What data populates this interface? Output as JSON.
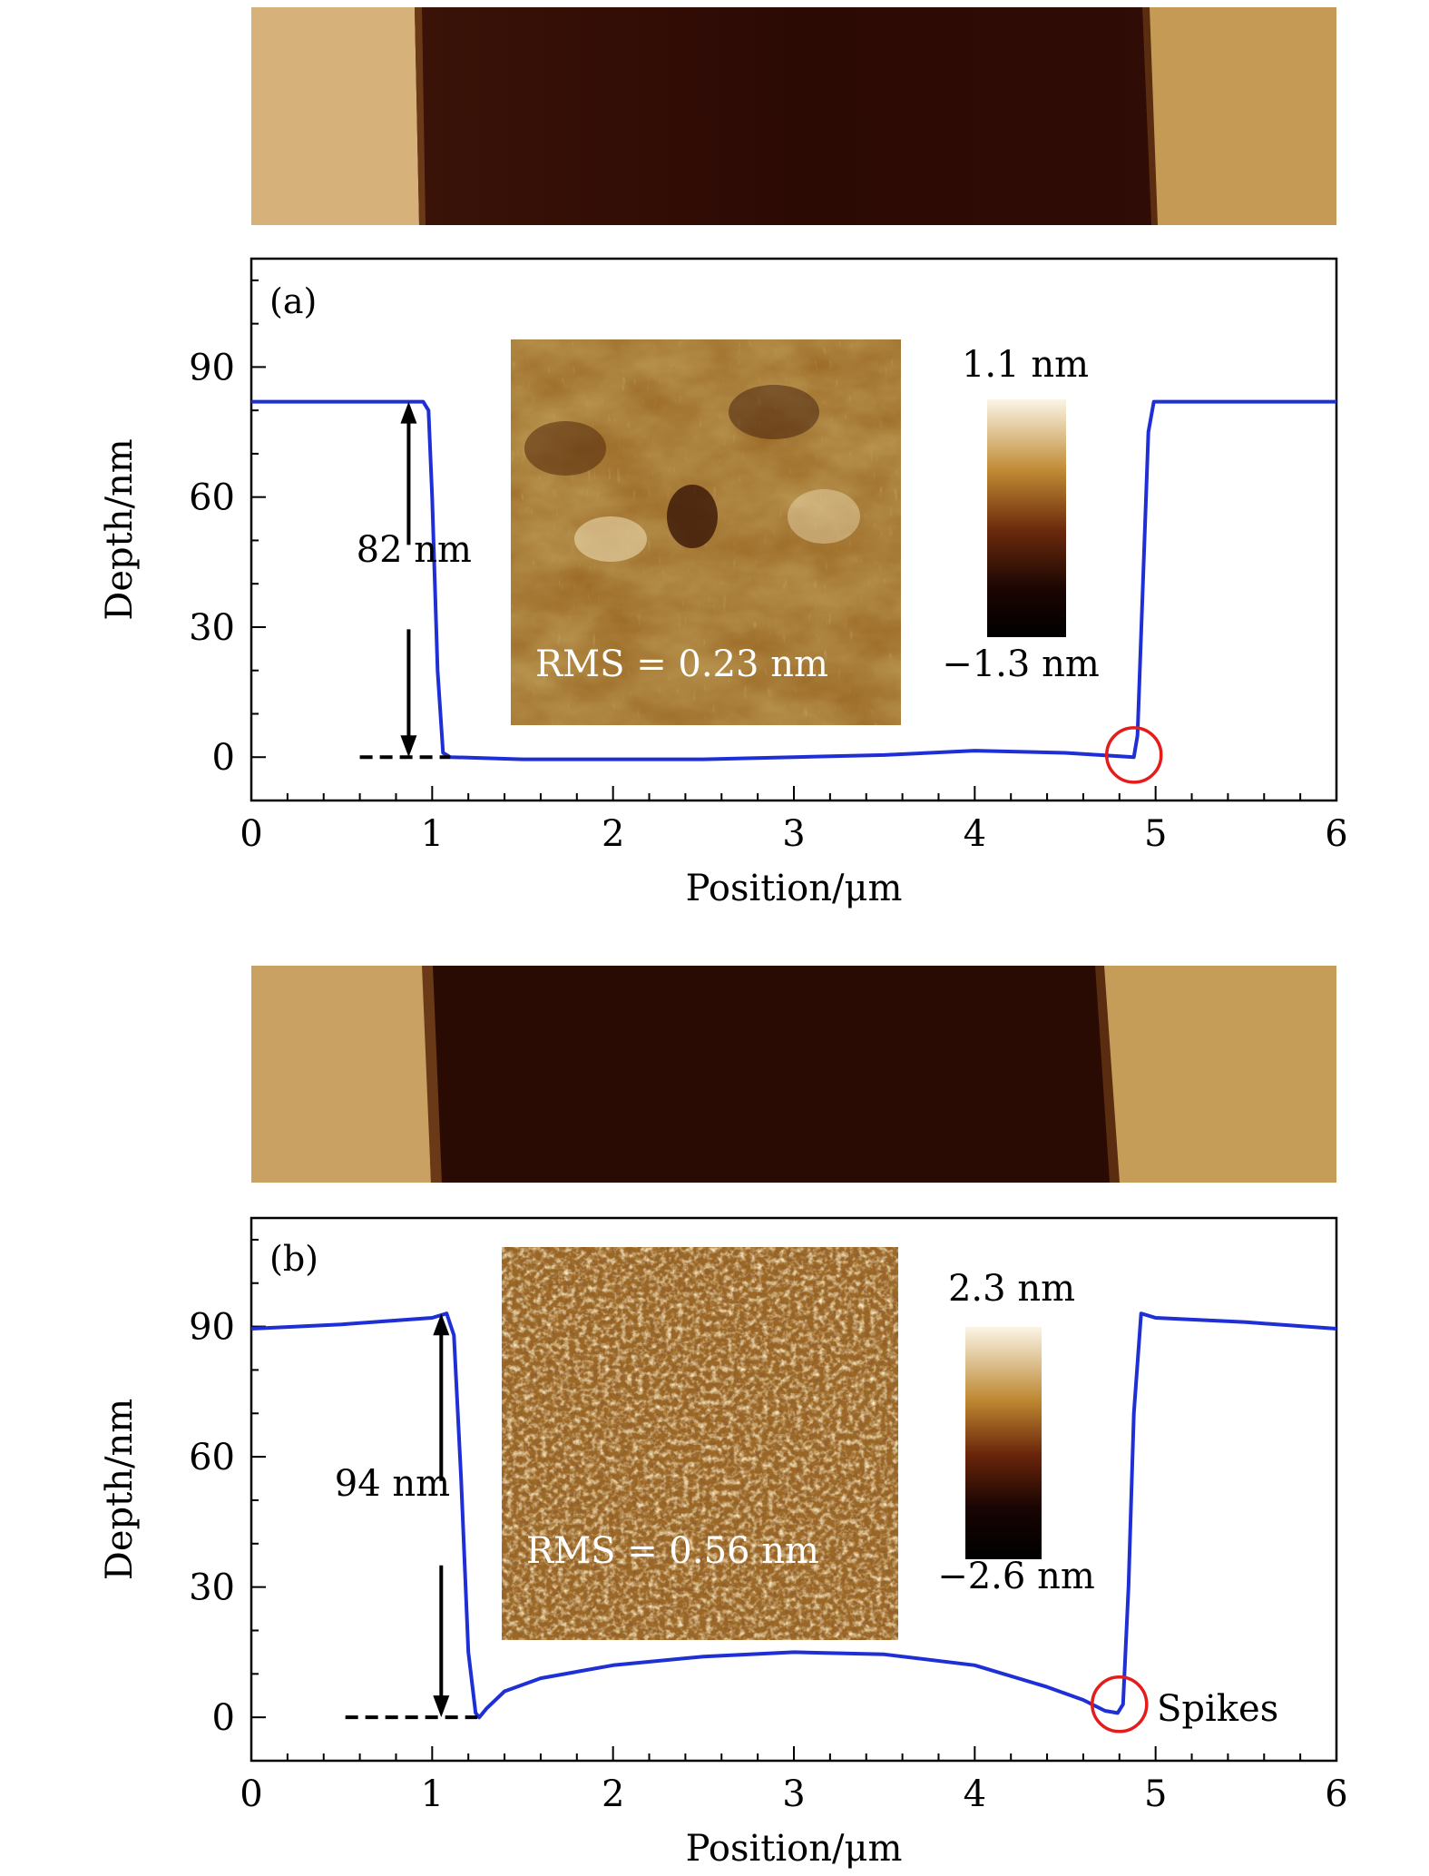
{
  "colors": {
    "curve": "#1f2fd6",
    "circle": "#e51c1c",
    "axis": "#000000",
    "afm_bright": "#f5ead2",
    "afm_mid": "#b8862f",
    "afm_dark": "#2a0a04"
  },
  "chart_data": [
    {
      "type": "line",
      "panel_label": "(a)",
      "xlabel": "Position/μm",
      "ylabel": "Depth/nm",
      "xlim": [
        0,
        6
      ],
      "ylim": [
        -10,
        115
      ],
      "xticks": [
        "0",
        "1",
        "2",
        "3",
        "4",
        "5",
        "6"
      ],
      "yticks": [
        "0",
        "30",
        "60",
        "90"
      ],
      "grid": false,
      "series": [
        {
          "x": [
            0,
            0.5,
            0.8,
            0.95,
            0.98,
            1.0,
            1.03,
            1.06,
            1.1,
            1.5,
            2.0,
            2.5,
            3.0,
            3.5,
            4.0,
            4.5,
            4.88,
            4.9,
            4.93,
            4.96,
            4.99,
            5.03,
            5.5,
            6.0
          ],
          "y": [
            82,
            82,
            82,
            82,
            80,
            60,
            20,
            1,
            0,
            -0.5,
            -0.5,
            -0.5,
            0,
            0.5,
            1.5,
            1,
            0,
            5,
            40,
            75,
            82,
            82,
            82,
            82
          ]
        }
      ],
      "annotations": {
        "step_label": "82 nm",
        "inset_text": "RMS = 0.23 nm",
        "colorbar_max": "1.1 nm",
        "colorbar_min": "−1.3 nm"
      }
    },
    {
      "type": "line",
      "panel_label": "(b)",
      "xlabel": "Position/μm",
      "ylabel": "Depth/nm",
      "xlim": [
        0,
        6
      ],
      "ylim": [
        -10,
        115
      ],
      "xticks": [
        "0",
        "1",
        "2",
        "3",
        "4",
        "5",
        "6"
      ],
      "yticks": [
        "0",
        "30",
        "60",
        "90"
      ],
      "grid": false,
      "series": [
        {
          "x": [
            0,
            0.5,
            1.0,
            1.08,
            1.12,
            1.16,
            1.2,
            1.24,
            1.26,
            1.3,
            1.4,
            1.6,
            2.0,
            2.5,
            3.0,
            3.5,
            4.0,
            4.4,
            4.6,
            4.72,
            4.79,
            4.82,
            4.85,
            4.88,
            4.92,
            5.0,
            5.5,
            6.0
          ],
          "y": [
            89.5,
            90.5,
            92,
            93,
            88,
            55,
            15,
            1,
            0,
            2,
            6,
            9,
            12,
            14,
            15,
            14.5,
            12,
            7,
            4,
            1.5,
            1,
            3,
            30,
            70,
            93,
            92,
            91,
            89.5
          ]
        }
      ],
      "annotations": {
        "step_label": "94 nm",
        "inset_text": "RMS = 0.56 nm",
        "colorbar_max": "2.3 nm",
        "colorbar_min": "−2.6 nm",
        "spike_label": "Spikes"
      }
    }
  ]
}
